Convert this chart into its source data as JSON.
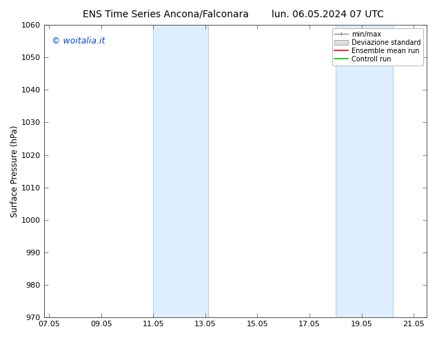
{
  "title_left": "ENS Time Series Ancona/Falconara",
  "title_right": "lun. 06.05.2024 07 UTC",
  "ylabel": "Surface Pressure (hPa)",
  "ylim": [
    970,
    1060
  ],
  "yticks": [
    970,
    980,
    990,
    1000,
    1010,
    1020,
    1030,
    1040,
    1050,
    1060
  ],
  "xtick_labels": [
    "07.05",
    "09.05",
    "11.05",
    "13.05",
    "15.05",
    "17.05",
    "19.05",
    "21.05"
  ],
  "xtick_positions": [
    0,
    2,
    4,
    6,
    8,
    10,
    12,
    14
  ],
  "xlim": [
    -0.2,
    14.5
  ],
  "shaded_bands": [
    {
      "xmin": 4.0,
      "xmax": 6.1
    },
    {
      "xmin": 11.0,
      "xmax": 13.2
    }
  ],
  "shade_color": "#ddeeff",
  "band_edge_color": "#aaccee",
  "watermark": "© woitalia.it",
  "watermark_color": "#0044cc",
  "legend_labels": [
    "min/max",
    "Deviazione standard",
    "Ensemble mean run",
    "Controll run"
  ],
  "legend_colors_line": [
    "#888888",
    "#cccccc",
    "#ff0000",
    "#00bb00"
  ],
  "background_color": "#ffffff",
  "plot_bg_color": "#ffffff",
  "title_fontsize": 10,
  "tick_fontsize": 8,
  "ylabel_fontsize": 8.5,
  "watermark_fontsize": 9
}
